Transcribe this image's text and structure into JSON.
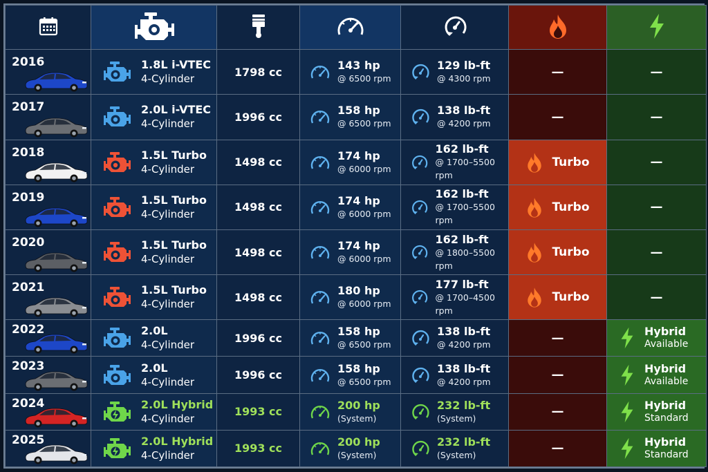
{
  "header": {
    "icons": [
      "calendar-icon",
      "engine-icon",
      "piston-icon",
      "speedometer-icon",
      "torque-icon",
      "flame-icon",
      "lightning-icon"
    ],
    "colors": {
      "turbo_header": "#6a150c",
      "hybrid_header": "#2b5f25"
    }
  },
  "rows": [
    {
      "year": "2016",
      "car_color": "#1d47c8",
      "engine_icon_color": "#4aa3e8",
      "engine": "1.8L i-VTEC",
      "cyl": "4-Cylinder",
      "disp": "1798 cc",
      "hp": "143 hp",
      "hp_rpm": "@ 6500 rpm",
      "tq": "129 lb-ft",
      "tq_rpm": "@ 4300 rpm",
      "turbo": "—",
      "hybrid": "—",
      "hybrid_sub": ""
    },
    {
      "year": "2017",
      "car_color": "#6b6e73",
      "engine_icon_color": "#4aa3e8",
      "engine": "2.0L i-VTEC",
      "cyl": "4-Cylinder",
      "disp": "1996 cc",
      "hp": "158 hp",
      "hp_rpm": "@ 6500 rpm",
      "tq": "138 lb-ft",
      "tq_rpm": "@ 4200 rpm",
      "turbo": "—",
      "hybrid": "—",
      "hybrid_sub": ""
    },
    {
      "year": "2018",
      "car_color": "#f2f2f2",
      "engine_icon_color": "#ee5236",
      "engine": "1.5L Turbo",
      "cyl": "4-Cylinder",
      "disp": "1498 cc",
      "hp": "174 hp",
      "hp_rpm": "@ 6000 rpm",
      "tq": "162 lb-ft",
      "tq_rpm": "@ 1700–5500 rpm",
      "turbo": "Turbo",
      "hybrid": "—",
      "hybrid_sub": ""
    },
    {
      "year": "2019",
      "car_color": "#1d47c8",
      "engine_icon_color": "#ee5236",
      "engine": "1.5L Turbo",
      "cyl": "4-Cylinder",
      "disp": "1498 cc",
      "hp": "174 hp",
      "hp_rpm": "@ 6000 rpm",
      "tq": "162 lb-ft",
      "tq_rpm": "@ 1700–5500 rpm",
      "turbo": "Turbo",
      "hybrid": "—",
      "hybrid_sub": ""
    },
    {
      "year": "2020",
      "car_color": "#5c5f64",
      "engine_icon_color": "#ee5236",
      "engine": "1.5L Turbo",
      "cyl": "4-Cylinder",
      "disp": "1498 cc",
      "hp": "174 hp",
      "hp_rpm": "@ 6000 rpm",
      "tq": "162 lb-ft",
      "tq_rpm": "@ 1800–5500 rpm",
      "turbo": "Turbo",
      "hybrid": "—",
      "hybrid_sub": ""
    },
    {
      "year": "2021",
      "car_color": "#8a8d92",
      "engine_icon_color": "#ee5236",
      "engine": "1.5L Turbo",
      "cyl": "4-Cylinder",
      "disp": "1498 cc",
      "hp": "180 hp",
      "hp_rpm": "@ 6000 rpm",
      "tq": "177 lb-ft",
      "tq_rpm": "@ 1700–4500 rpm",
      "turbo": "Turbo",
      "hybrid": "—",
      "hybrid_sub": ""
    },
    {
      "year": "2022",
      "car_color": "#1d47c8",
      "engine_icon_color": "#4aa3e8",
      "engine": "2.0L",
      "cyl": "4-Cylinder",
      "disp": "1996 cc",
      "hp": "158 hp",
      "hp_rpm": "@ 6500 rpm",
      "tq": "138 lb-ft",
      "tq_rpm": "@ 4200 rpm",
      "turbo": "—",
      "hybrid": "Hybrid",
      "hybrid_sub": "Available"
    },
    {
      "year": "2023",
      "car_color": "#6b6e73",
      "engine_icon_color": "#4aa3e8",
      "engine": "2.0L",
      "cyl": "4-Cylinder",
      "disp": "1996 cc",
      "hp": "158 hp",
      "hp_rpm": "@ 6500 rpm",
      "tq": "138 lb-ft",
      "tq_rpm": "@ 4200 rpm",
      "turbo": "—",
      "hybrid": "Hybrid",
      "hybrid_sub": "Available"
    },
    {
      "year": "2024",
      "car_color": "#d42424",
      "engine_icon_color": "#6fd64a",
      "engine": "2.0L Hybrid",
      "cyl": "4-Cylinder",
      "disp": "1993 cc",
      "hp": "200 hp",
      "hp_rpm": "(System)",
      "tq": "232 lb-ft",
      "tq_rpm": "(System)",
      "turbo": "—",
      "hybrid": "Hybrid",
      "hybrid_sub": "Standard"
    },
    {
      "year": "2025",
      "car_color": "#e4e6ea",
      "engine_icon_color": "#6fd64a",
      "engine": "2.0L Hybrid",
      "cyl": "4-Cylinder",
      "disp": "1993 cc",
      "hp": "200 hp",
      "hp_rpm": "(System)",
      "tq": "232 lb-ft",
      "tq_rpm": "(System)",
      "turbo": "—",
      "hybrid": "Hybrid",
      "hybrid_sub": "Standard"
    }
  ]
}
